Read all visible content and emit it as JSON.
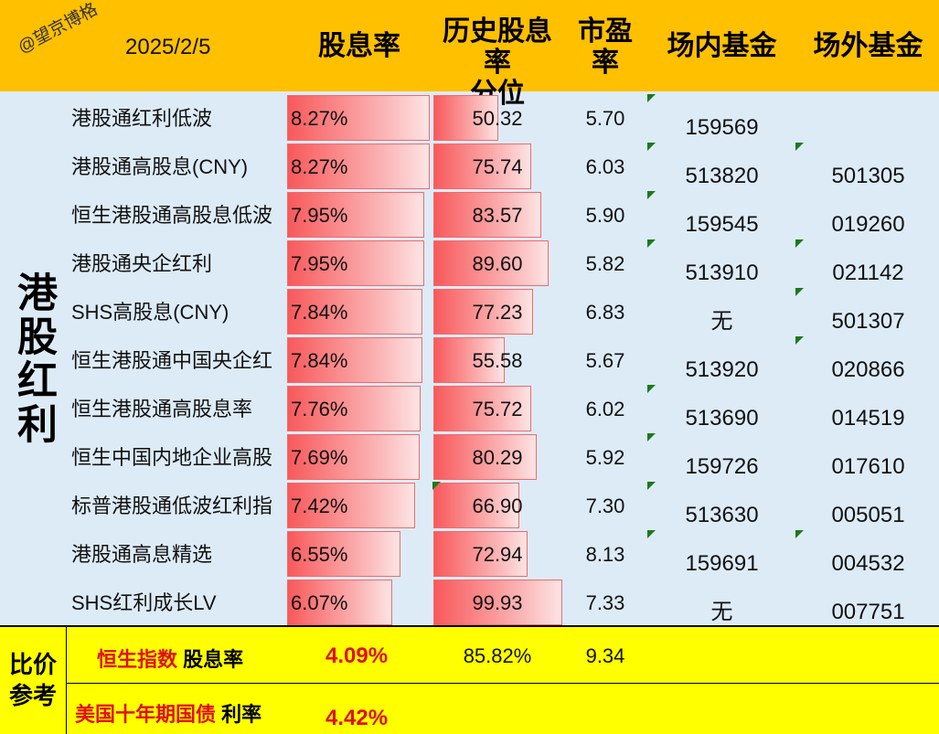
{
  "header": {
    "watermark": "@望京博格",
    "date": "2025/2/5",
    "col_yield": "股息率",
    "col_pct_line1": "历史股息率",
    "col_pct_line2": "分位",
    "col_pe_line1": "市盈",
    "col_pe_line2": "率",
    "col_inner": "场内基金",
    "col_outer": "场外基金"
  },
  "sidebar_title": "港股红利",
  "rows": [
    {
      "name": "港股通红利低波",
      "yield": "8.27%",
      "yield_num": 8.27,
      "pct": "50.32",
      "pct_num": 50.32,
      "pe": "5.70",
      "inner": "159569",
      "outer": "",
      "inner_mark": true,
      "outer_mark": false,
      "pct_mark": false
    },
    {
      "name": "港股通高股息(CNY)",
      "yield": "8.27%",
      "yield_num": 8.27,
      "pct": "75.74",
      "pct_num": 75.74,
      "pe": "6.03",
      "inner": "513820",
      "outer": "501305",
      "inner_mark": true,
      "outer_mark": true,
      "pct_mark": false
    },
    {
      "name": "恒生港股通高股息低波",
      "yield": "7.95%",
      "yield_num": 7.95,
      "pct": "83.57",
      "pct_num": 83.57,
      "pe": "5.90",
      "inner": "159545",
      "outer": "019260",
      "inner_mark": true,
      "outer_mark": false,
      "pct_mark": false
    },
    {
      "name": "港股通央企红利",
      "yield": "7.95%",
      "yield_num": 7.95,
      "pct": "89.60",
      "pct_num": 89.6,
      "pe": "5.82",
      "inner": "513910",
      "outer": "021142",
      "inner_mark": true,
      "outer_mark": true,
      "pct_mark": false
    },
    {
      "name": "SHS高股息(CNY)",
      "yield": "7.84%",
      "yield_num": 7.84,
      "pct": "77.23",
      "pct_num": 77.23,
      "pe": "6.83",
      "inner": "无",
      "outer": "501307",
      "inner_mark": false,
      "outer_mark": true,
      "pct_mark": false
    },
    {
      "name": "恒生港股通中国央企红",
      "yield": "7.84%",
      "yield_num": 7.84,
      "pct": "55.58",
      "pct_num": 55.58,
      "pe": "5.67",
      "inner": "513920",
      "outer": "020866",
      "inner_mark": false,
      "outer_mark": true,
      "pct_mark": false
    },
    {
      "name": "恒生港股通高股息率",
      "yield": "7.76%",
      "yield_num": 7.76,
      "pct": "75.72",
      "pct_num": 75.72,
      "pe": "6.02",
      "inner": "513690",
      "outer": "014519",
      "inner_mark": true,
      "outer_mark": false,
      "pct_mark": false
    },
    {
      "name": "恒生中国内地企业高股",
      "yield": "7.69%",
      "yield_num": 7.69,
      "pct": "80.29",
      "pct_num": 80.29,
      "pe": "5.92",
      "inner": "159726",
      "outer": "017610",
      "inner_mark": true,
      "outer_mark": false,
      "pct_mark": false
    },
    {
      "name": "标普港股通低波红利指",
      "yield": "7.42%",
      "yield_num": 7.42,
      "pct": "66.90",
      "pct_num": 66.9,
      "pe": "7.30",
      "inner": "513630",
      "outer": "005051",
      "inner_mark": true,
      "outer_mark": false,
      "pct_mark": true
    },
    {
      "name": "港股通高息精选",
      "yield": "6.55%",
      "yield_num": 6.55,
      "pct": "72.94",
      "pct_num": 72.94,
      "pe": "8.13",
      "inner": "159691",
      "outer": "004532",
      "inner_mark": true,
      "outer_mark": true,
      "pct_mark": false
    },
    {
      "name": "SHS红利成长LV",
      "yield": "6.07%",
      "yield_num": 6.07,
      "pct": "99.93",
      "pct_num": 99.93,
      "pe": "7.33",
      "inner": "无",
      "outer": "007751",
      "inner_mark": false,
      "outer_mark": false,
      "pct_mark": false
    }
  ],
  "compare": {
    "label_line1": "比价",
    "label_line2": "参考",
    "hsi_name": "恒生指数",
    "hsi_suffix": " 股息率",
    "hsi_yield": "4.09%",
    "hsi_pct": "85.82%",
    "hsi_pe": "9.34",
    "us_name": "美国十年期国债",
    "us_suffix": " 利率",
    "us_rate": "4.42%"
  },
  "colors": {
    "header_bg": "#ffc000",
    "body_bg": "#ddebf7",
    "compare_bg": "#ffff00",
    "bar_red": "#f8595b",
    "highlight_red": "#e01010",
    "marker_green": "#1a7a1a"
  }
}
